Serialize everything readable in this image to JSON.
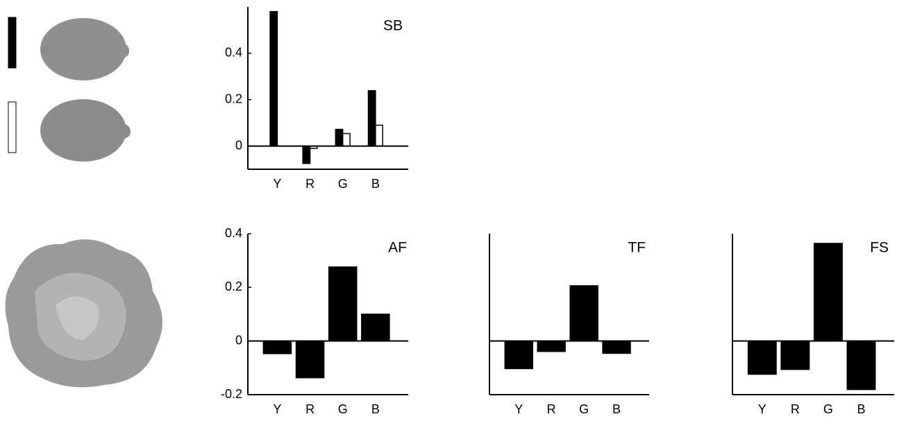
{
  "chart_data": [
    {
      "type": "bar",
      "title": "SB",
      "categories": [
        "Y",
        "R",
        "G",
        "B"
      ],
      "series": [
        {
          "color": "#000000",
          "values": [
            0.58,
            -0.075,
            0.072,
            0.239
          ]
        },
        {
          "color": "#ffffff",
          "values": [
            0,
            -0.01,
            0.054,
            0.09
          ]
        }
      ],
      "ylim": [
        -0.1,
        0.6
      ],
      "yticks": [
        0,
        0.2,
        0.4
      ]
    },
    {
      "type": "bar",
      "title": "AF",
      "categories": [
        "Y",
        "R",
        "G",
        "B"
      ],
      "series": [
        {
          "color": "#000000",
          "values": [
            -0.047,
            -0.137,
            0.276,
            0.1
          ]
        }
      ],
      "ylim": [
        -0.2,
        0.4
      ],
      "yticks": [
        -0.2,
        0,
        0.2,
        0.4
      ]
    },
    {
      "type": "bar",
      "title": "TF",
      "categories": [
        "Y",
        "R",
        "G",
        "B"
      ],
      "series": [
        {
          "color": "#000000",
          "values": [
            -0.103,
            -0.039,
            0.206,
            -0.046
          ]
        }
      ],
      "ylim": [
        -0.2,
        0.4
      ]
    },
    {
      "type": "bar",
      "title": "FS",
      "categories": [
        "Y",
        "R",
        "G",
        "B"
      ],
      "series": [
        {
          "color": "#000000",
          "values": [
            -0.124,
            -0.106,
            0.364,
            -0.181
          ]
        }
      ],
      "ylim": [
        -0.2,
        0.4
      ]
    }
  ]
}
